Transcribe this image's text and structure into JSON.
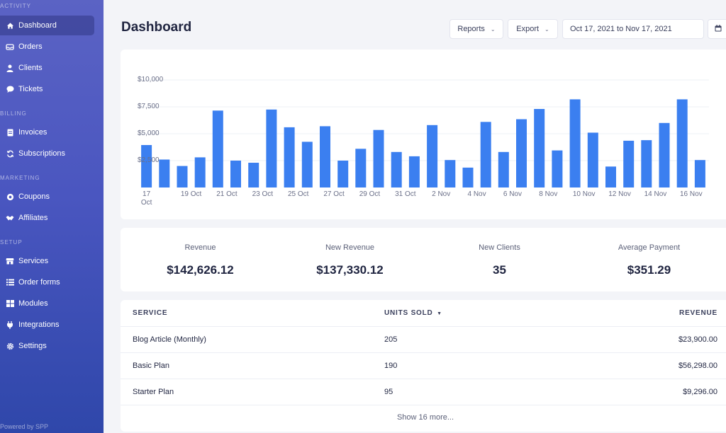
{
  "sidebar": {
    "sections": {
      "activity": "ACTIVITY",
      "billing": "BILLING",
      "marketing": "MARKETING",
      "setup": "SETUP"
    },
    "items": {
      "dashboard": "Dashboard",
      "orders": "Orders",
      "clients": "Clients",
      "tickets": "Tickets",
      "invoices": "Invoices",
      "subscriptions": "Subscriptions",
      "coupons": "Coupons",
      "affiliates": "Affiliates",
      "services": "Services",
      "order_forms": "Order forms",
      "modules": "Modules",
      "integrations": "Integrations",
      "settings": "Settings"
    },
    "footer": "Powered by SPP"
  },
  "header": {
    "title": "Dashboard",
    "reports_label": "Reports",
    "export_label": "Export",
    "date_range": "Oct 17, 2021 to Nov 17, 2021"
  },
  "chart_data": {
    "type": "bar",
    "ylim": [
      0,
      10000
    ],
    "y_ticks": [
      {
        "value": 10000,
        "label": "$10,000"
      },
      {
        "value": 7500,
        "label": "$7,500"
      },
      {
        "value": 5000,
        "label": "$5,000"
      },
      {
        "value": 2500,
        "label": "$2,500"
      }
    ],
    "x_labels": [
      "17 Oct",
      "19 Oct",
      "21 Oct",
      "23 Oct",
      "25 Oct",
      "27 Oct",
      "29 Oct",
      "31 Oct",
      "2 Nov",
      "4 Nov",
      "6 Nov",
      "8 Nov",
      "10 Nov",
      "12 Nov",
      "14 Nov",
      "16 Nov"
    ],
    "values": [
      3950,
      2600,
      2000,
      2800,
      7150,
      2500,
      2300,
      7250,
      5600,
      4250,
      5700,
      2500,
      3600,
      5350,
      3300,
      2900,
      5800,
      2550,
      1850,
      6100,
      3300,
      6350,
      7300,
      3450,
      8200,
      5100,
      1950,
      4350,
      4400,
      6000,
      8200,
      2550
    ],
    "color": "#3b7ff0",
    "grid": true
  },
  "stats": {
    "revenue": {
      "label": "Revenue",
      "value": "$142,626.12"
    },
    "new_revenue": {
      "label": "New Revenue",
      "value": "$137,330.12"
    },
    "new_clients": {
      "label": "New Clients",
      "value": "35"
    },
    "avg_payment": {
      "label": "Average Payment",
      "value": "$351.29"
    }
  },
  "table": {
    "headers": {
      "service": "SERVICE",
      "units": "UNITS SOLD",
      "revenue": "REVENUE"
    },
    "rows": [
      {
        "service": "Blog Article (Monthly)",
        "units": "205",
        "revenue": "$23,900.00"
      },
      {
        "service": "Basic Plan",
        "units": "190",
        "revenue": "$56,298.00"
      },
      {
        "service": "Starter Plan",
        "units": "95",
        "revenue": "$9,296.00"
      }
    ],
    "show_more": "Show 16 more..."
  }
}
